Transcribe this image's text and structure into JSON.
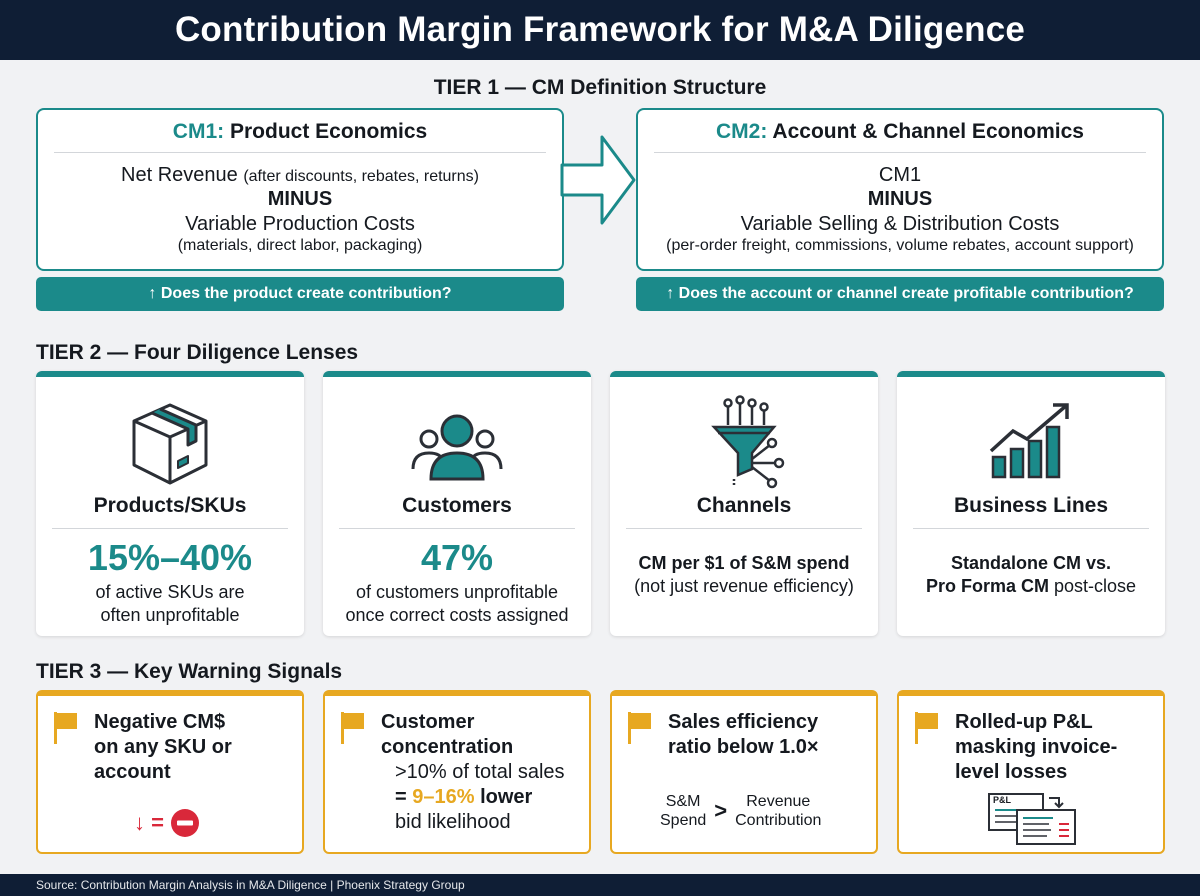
{
  "title": "Contribution Margin Framework for M&A Diligence",
  "tier1": {
    "heading": "TIER 1 — CM Definition Structure",
    "cm1": {
      "tag": "CM1:",
      "name": "Product Economics",
      "line1": "Net Revenue",
      "line1_note": "(after discounts, rebates, returns)",
      "minus": "MINUS",
      "line2": "Variable Production Costs",
      "line2_note": "(materials, direct labor, packaging)",
      "question": "↑ Does the product create contribution?"
    },
    "cm2": {
      "tag": "CM2:",
      "name": "Account & Channel Economics",
      "line1": "CM1",
      "minus": "MINUS",
      "line2": "Variable Selling & Distribution Costs",
      "line2_note": "(per-order freight, commissions, volume rebates, account support)",
      "question": "↑ Does the account or channel create profitable contribution?"
    }
  },
  "tier2": {
    "heading": "TIER 2 — Four Diligence Lenses",
    "lenses": [
      {
        "icon": "box-icon",
        "title": "Products/SKUs",
        "stat": "15%–40%",
        "desc1": "of active SKUs are",
        "desc2": "often unprofitable"
      },
      {
        "icon": "people-icon",
        "title": "Customers",
        "stat": "47%",
        "desc1": "of customers unprofitable",
        "desc2": "once correct costs assigned"
      },
      {
        "icon": "funnel-icon",
        "title": "Channels",
        "line1": "CM per $1 of S&M spend",
        "line2": "(not just revenue efficiency)"
      },
      {
        "icon": "growth-chart-icon",
        "title": "Business Lines",
        "line1": "Standalone CM vs.",
        "line2_bold": "Pro Forma CM",
        "line2_rest": " post-close"
      }
    ]
  },
  "tier3": {
    "heading": "TIER 3 — Key Warning Signals",
    "signals": [
      {
        "title1": "Negative CM$",
        "title2": "on any SKU or",
        "title3": "account",
        "symbol": "↓ ="
      },
      {
        "title1": "Customer",
        "title2": "concentration",
        "line1": ">10% of total sales",
        "line2_eq": "= ",
        "line2_hl": "9–16%",
        "line2_bold": " lower",
        "line3": "bid likelihood"
      },
      {
        "title1": "Sales efficiency",
        "title2": "ratio below 1.0×",
        "left1": "S&M",
        "left2": "Spend",
        "op": ">",
        "right1": "Revenue",
        "right2": "Contribution"
      },
      {
        "title1": "Rolled-up P&L",
        "title2": "masking invoice-",
        "title3": "level losses",
        "doc_label": "P&L"
      }
    ]
  },
  "footer": "Source: Contribution Margin Analysis in M&A Diligence | Phoenix Strategy Group",
  "colors": {
    "navy": "#0f1e35",
    "teal": "#1b8a8a",
    "amber": "#e7a821",
    "red": "#d9283a"
  }
}
